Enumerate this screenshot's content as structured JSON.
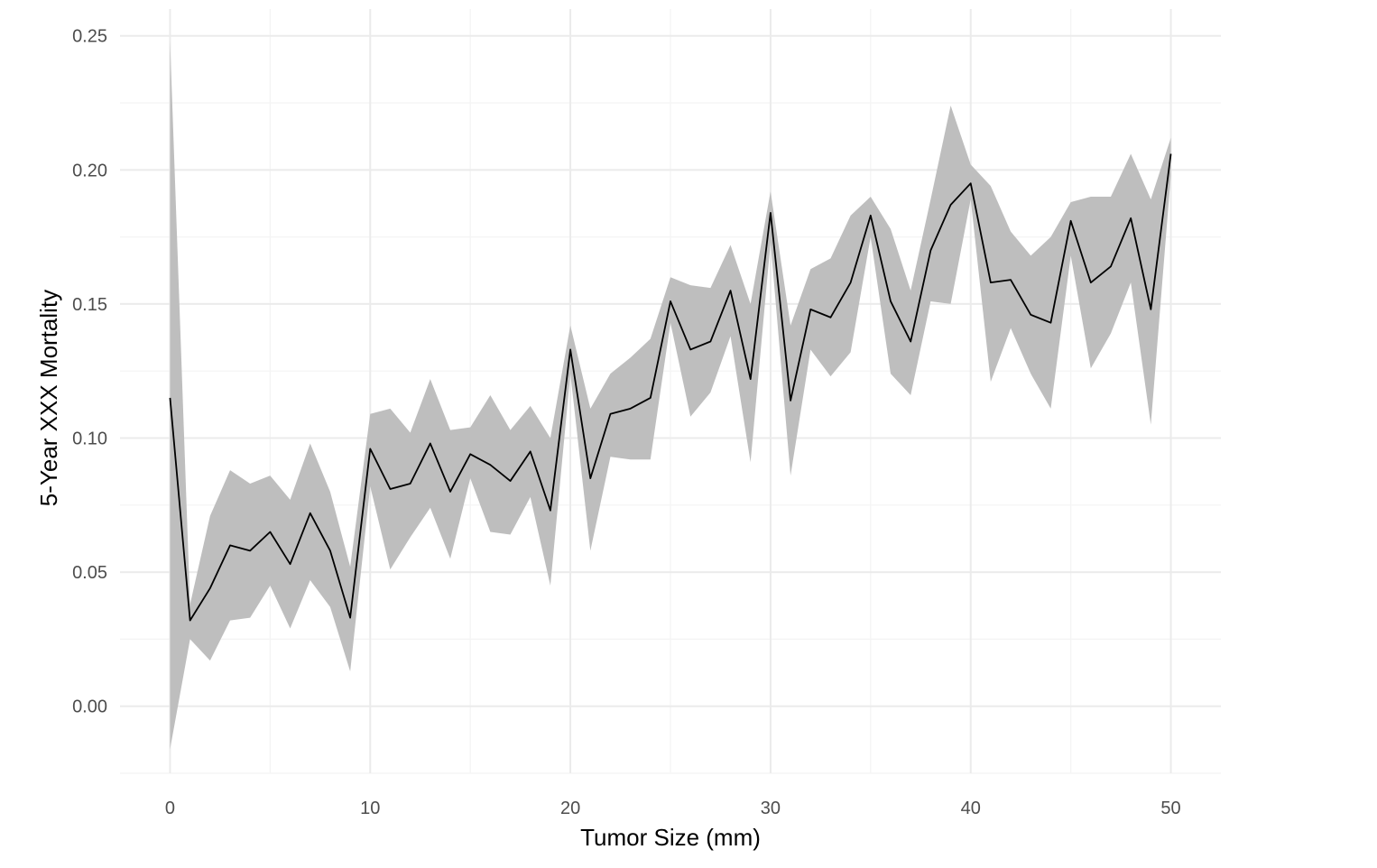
{
  "chart_data": {
    "type": "line",
    "title": "",
    "xlabel": "Tumor Size (mm)",
    "ylabel": "5-Year XXX Mortality",
    "xlim": [
      -2.5,
      52.5
    ],
    "ylim": [
      -0.025,
      0.26
    ],
    "x_ticks": [
      0,
      10,
      20,
      30,
      40,
      50
    ],
    "x_tick_labels": [
      "0",
      "10",
      "20",
      "30",
      "40",
      "50"
    ],
    "y_ticks": [
      0.0,
      0.05,
      0.1,
      0.15,
      0.2,
      0.25
    ],
    "y_tick_labels": [
      "0.00",
      "0.05",
      "0.10",
      "0.15",
      "0.20",
      "0.25"
    ],
    "grid": true,
    "x": [
      0,
      1,
      2,
      3,
      4,
      5,
      6,
      7,
      8,
      9,
      10,
      11,
      12,
      13,
      14,
      15,
      16,
      17,
      18,
      19,
      20,
      21,
      22,
      23,
      24,
      25,
      26,
      27,
      28,
      29,
      30,
      31,
      32,
      33,
      34,
      35,
      36,
      37,
      38,
      39,
      40,
      41,
      42,
      43,
      44,
      45,
      46,
      47,
      48,
      49,
      50
    ],
    "series": [
      {
        "values": [
          0.115,
          0.032,
          0.044,
          0.06,
          0.058,
          0.065,
          0.053,
          0.072,
          0.058,
          0.033,
          0.096,
          0.081,
          0.083,
          0.098,
          0.08,
          0.094,
          0.09,
          0.084,
          0.095,
          0.073,
          0.133,
          0.085,
          0.109,
          0.111,
          0.115,
          0.151,
          0.133,
          0.136,
          0.155,
          0.122,
          0.184,
          0.114,
          0.148,
          0.145,
          0.158,
          0.183,
          0.151,
          0.136,
          0.17,
          0.187,
          0.195,
          0.158,
          0.159,
          0.146,
          0.143,
          0.181,
          0.158,
          0.164,
          0.182,
          0.148,
          0.206
        ],
        "lower": [
          -0.016,
          0.025,
          0.017,
          0.032,
          0.033,
          0.045,
          0.029,
          0.047,
          0.037,
          0.013,
          0.082,
          0.051,
          0.063,
          0.074,
          0.055,
          0.085,
          0.065,
          0.064,
          0.078,
          0.045,
          0.124,
          0.058,
          0.093,
          0.092,
          0.092,
          0.143,
          0.108,
          0.117,
          0.138,
          0.091,
          0.173,
          0.086,
          0.133,
          0.123,
          0.132,
          0.175,
          0.124,
          0.116,
          0.151,
          0.15,
          0.189,
          0.121,
          0.141,
          0.124,
          0.111,
          0.168,
          0.126,
          0.139,
          0.158,
          0.105,
          0.198
        ],
        "upper": [
          0.248,
          0.038,
          0.071,
          0.088,
          0.083,
          0.086,
          0.077,
          0.098,
          0.08,
          0.052,
          0.109,
          0.111,
          0.102,
          0.122,
          0.103,
          0.104,
          0.116,
          0.103,
          0.112,
          0.1,
          0.142,
          0.111,
          0.124,
          0.13,
          0.137,
          0.16,
          0.157,
          0.156,
          0.172,
          0.15,
          0.192,
          0.142,
          0.163,
          0.167,
          0.183,
          0.19,
          0.178,
          0.155,
          0.189,
          0.224,
          0.202,
          0.194,
          0.177,
          0.168,
          0.175,
          0.188,
          0.19,
          0.19,
          0.206,
          0.189,
          0.212
        ]
      }
    ],
    "colors": {
      "line": "#000000",
      "ribbon": "#bebebe",
      "grid_major": "#ebebeb",
      "grid_minor": "#f4f4f4",
      "tick_text": "#4d4d4d"
    }
  }
}
